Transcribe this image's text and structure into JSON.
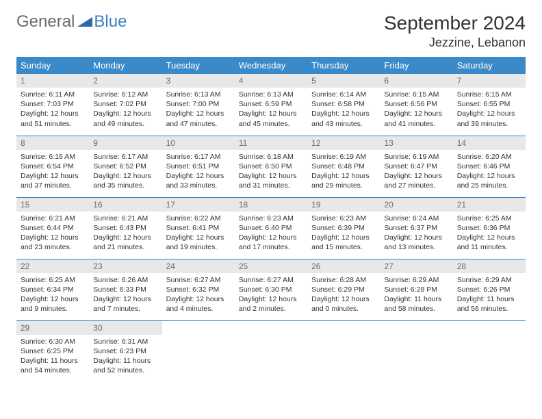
{
  "logo": {
    "text1": "General",
    "text2": "Blue"
  },
  "title": "September 2024",
  "location": "Jezzine, Lebanon",
  "colors": {
    "header_bg": "#3a89c9",
    "header_fg": "#ffffff",
    "daynum_bg": "#e8e8e8",
    "daynum_fg": "#6b6b6b",
    "week_border": "#3a7fbf",
    "logo_gray": "#6b6b6b",
    "logo_blue": "#3a7fbf",
    "body_bg": "#ffffff",
    "text": "#333333"
  },
  "weekdays": [
    "Sunday",
    "Monday",
    "Tuesday",
    "Wednesday",
    "Thursday",
    "Friday",
    "Saturday"
  ],
  "weeks": [
    [
      {
        "n": "1",
        "sr": "Sunrise: 6:11 AM",
        "ss": "Sunset: 7:03 PM",
        "d1": "Daylight: 12 hours",
        "d2": "and 51 minutes."
      },
      {
        "n": "2",
        "sr": "Sunrise: 6:12 AM",
        "ss": "Sunset: 7:02 PM",
        "d1": "Daylight: 12 hours",
        "d2": "and 49 minutes."
      },
      {
        "n": "3",
        "sr": "Sunrise: 6:13 AM",
        "ss": "Sunset: 7:00 PM",
        "d1": "Daylight: 12 hours",
        "d2": "and 47 minutes."
      },
      {
        "n": "4",
        "sr": "Sunrise: 6:13 AM",
        "ss": "Sunset: 6:59 PM",
        "d1": "Daylight: 12 hours",
        "d2": "and 45 minutes."
      },
      {
        "n": "5",
        "sr": "Sunrise: 6:14 AM",
        "ss": "Sunset: 6:58 PM",
        "d1": "Daylight: 12 hours",
        "d2": "and 43 minutes."
      },
      {
        "n": "6",
        "sr": "Sunrise: 6:15 AM",
        "ss": "Sunset: 6:56 PM",
        "d1": "Daylight: 12 hours",
        "d2": "and 41 minutes."
      },
      {
        "n": "7",
        "sr": "Sunrise: 6:15 AM",
        "ss": "Sunset: 6:55 PM",
        "d1": "Daylight: 12 hours",
        "d2": "and 39 minutes."
      }
    ],
    [
      {
        "n": "8",
        "sr": "Sunrise: 6:16 AM",
        "ss": "Sunset: 6:54 PM",
        "d1": "Daylight: 12 hours",
        "d2": "and 37 minutes."
      },
      {
        "n": "9",
        "sr": "Sunrise: 6:17 AM",
        "ss": "Sunset: 6:52 PM",
        "d1": "Daylight: 12 hours",
        "d2": "and 35 minutes."
      },
      {
        "n": "10",
        "sr": "Sunrise: 6:17 AM",
        "ss": "Sunset: 6:51 PM",
        "d1": "Daylight: 12 hours",
        "d2": "and 33 minutes."
      },
      {
        "n": "11",
        "sr": "Sunrise: 6:18 AM",
        "ss": "Sunset: 6:50 PM",
        "d1": "Daylight: 12 hours",
        "d2": "and 31 minutes."
      },
      {
        "n": "12",
        "sr": "Sunrise: 6:19 AM",
        "ss": "Sunset: 6:48 PM",
        "d1": "Daylight: 12 hours",
        "d2": "and 29 minutes."
      },
      {
        "n": "13",
        "sr": "Sunrise: 6:19 AM",
        "ss": "Sunset: 6:47 PM",
        "d1": "Daylight: 12 hours",
        "d2": "and 27 minutes."
      },
      {
        "n": "14",
        "sr": "Sunrise: 6:20 AM",
        "ss": "Sunset: 6:46 PM",
        "d1": "Daylight: 12 hours",
        "d2": "and 25 minutes."
      }
    ],
    [
      {
        "n": "15",
        "sr": "Sunrise: 6:21 AM",
        "ss": "Sunset: 6:44 PM",
        "d1": "Daylight: 12 hours",
        "d2": "and 23 minutes."
      },
      {
        "n": "16",
        "sr": "Sunrise: 6:21 AM",
        "ss": "Sunset: 6:43 PM",
        "d1": "Daylight: 12 hours",
        "d2": "and 21 minutes."
      },
      {
        "n": "17",
        "sr": "Sunrise: 6:22 AM",
        "ss": "Sunset: 6:41 PM",
        "d1": "Daylight: 12 hours",
        "d2": "and 19 minutes."
      },
      {
        "n": "18",
        "sr": "Sunrise: 6:23 AM",
        "ss": "Sunset: 6:40 PM",
        "d1": "Daylight: 12 hours",
        "d2": "and 17 minutes."
      },
      {
        "n": "19",
        "sr": "Sunrise: 6:23 AM",
        "ss": "Sunset: 6:39 PM",
        "d1": "Daylight: 12 hours",
        "d2": "and 15 minutes."
      },
      {
        "n": "20",
        "sr": "Sunrise: 6:24 AM",
        "ss": "Sunset: 6:37 PM",
        "d1": "Daylight: 12 hours",
        "d2": "and 13 minutes."
      },
      {
        "n": "21",
        "sr": "Sunrise: 6:25 AM",
        "ss": "Sunset: 6:36 PM",
        "d1": "Daylight: 12 hours",
        "d2": "and 11 minutes."
      }
    ],
    [
      {
        "n": "22",
        "sr": "Sunrise: 6:25 AM",
        "ss": "Sunset: 6:34 PM",
        "d1": "Daylight: 12 hours",
        "d2": "and 9 minutes."
      },
      {
        "n": "23",
        "sr": "Sunrise: 6:26 AM",
        "ss": "Sunset: 6:33 PM",
        "d1": "Daylight: 12 hours",
        "d2": "and 7 minutes."
      },
      {
        "n": "24",
        "sr": "Sunrise: 6:27 AM",
        "ss": "Sunset: 6:32 PM",
        "d1": "Daylight: 12 hours",
        "d2": "and 4 minutes."
      },
      {
        "n": "25",
        "sr": "Sunrise: 6:27 AM",
        "ss": "Sunset: 6:30 PM",
        "d1": "Daylight: 12 hours",
        "d2": "and 2 minutes."
      },
      {
        "n": "26",
        "sr": "Sunrise: 6:28 AM",
        "ss": "Sunset: 6:29 PM",
        "d1": "Daylight: 12 hours",
        "d2": "and 0 minutes."
      },
      {
        "n": "27",
        "sr": "Sunrise: 6:29 AM",
        "ss": "Sunset: 6:28 PM",
        "d1": "Daylight: 11 hours",
        "d2": "and 58 minutes."
      },
      {
        "n": "28",
        "sr": "Sunrise: 6:29 AM",
        "ss": "Sunset: 6:26 PM",
        "d1": "Daylight: 11 hours",
        "d2": "and 56 minutes."
      }
    ],
    [
      {
        "n": "29",
        "sr": "Sunrise: 6:30 AM",
        "ss": "Sunset: 6:25 PM",
        "d1": "Daylight: 11 hours",
        "d2": "and 54 minutes."
      },
      {
        "n": "30",
        "sr": "Sunrise: 6:31 AM",
        "ss": "Sunset: 6:23 PM",
        "d1": "Daylight: 11 hours",
        "d2": "and 52 minutes."
      },
      null,
      null,
      null,
      null,
      null
    ]
  ]
}
